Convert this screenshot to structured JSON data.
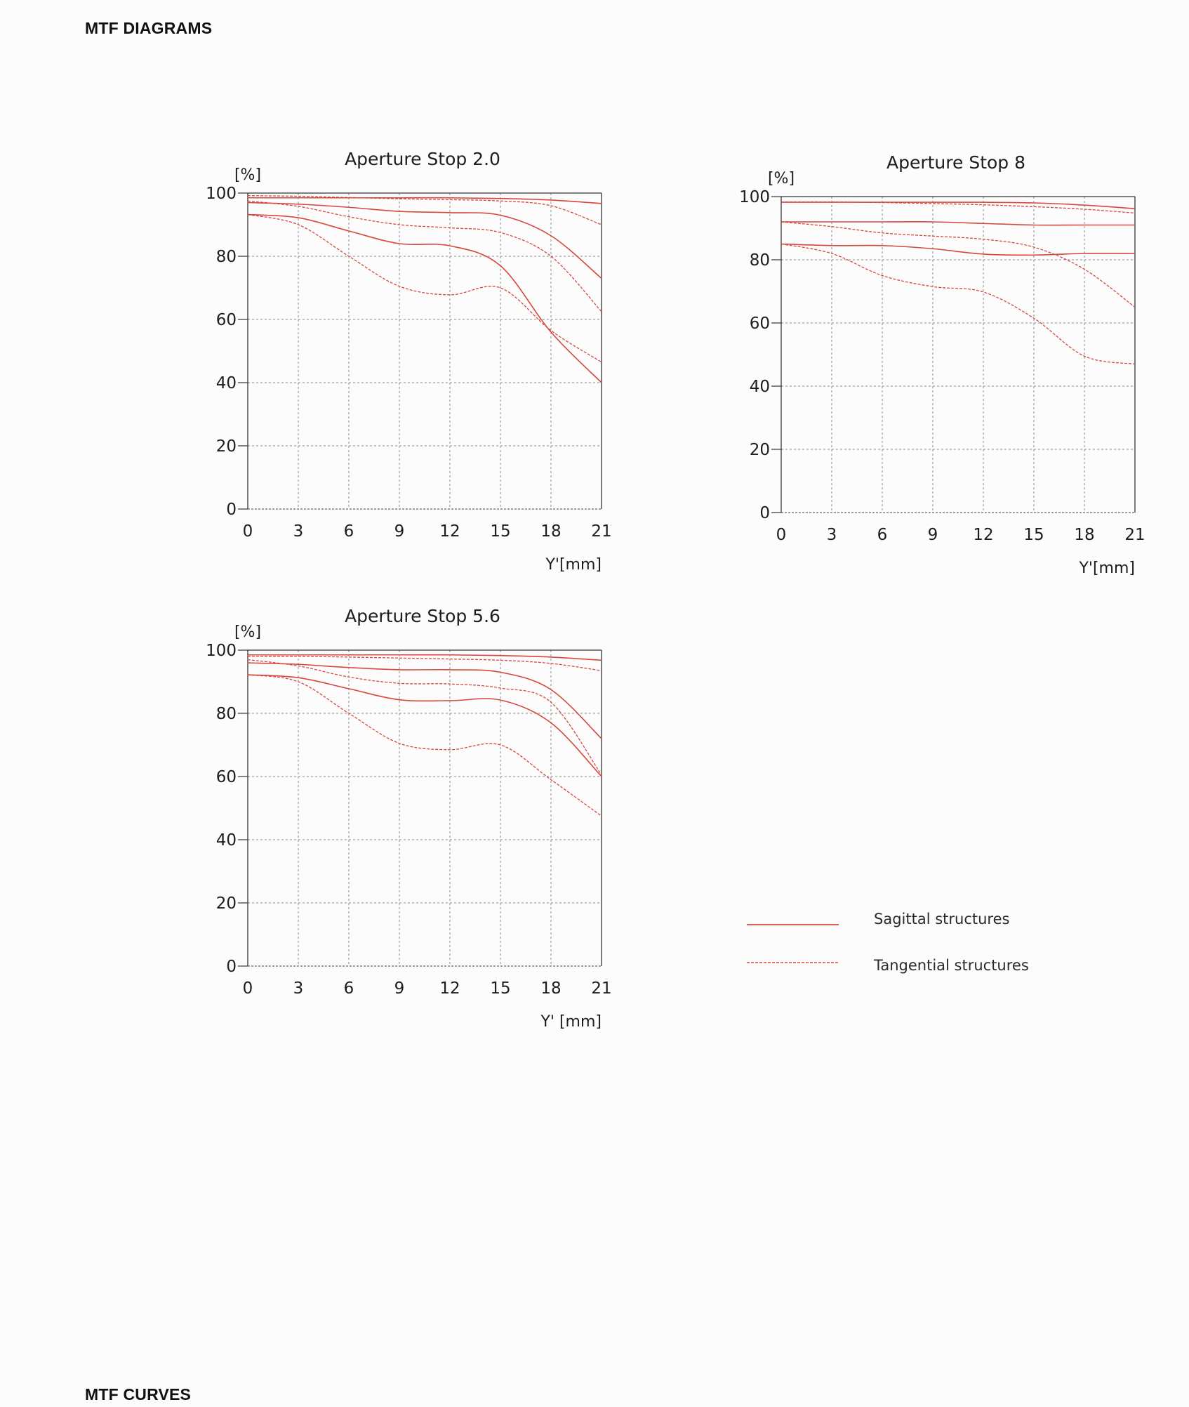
{
  "page": {
    "heading_top": "MTF DIAGRAMS",
    "heading_bottom": "MTF CURVES"
  },
  "colors": {
    "curve": "#d6473c",
    "grid": "#8a8a8a",
    "axis": "#333333"
  },
  "legend": {
    "sagittal": "Sagittal structures",
    "tangential": "Tangential structures"
  },
  "chart_data": [
    {
      "type": "line",
      "title": "Aperture Stop 2.0",
      "ylabel": "[%]",
      "xlabel": "Y'[mm]",
      "x_ticks": [
        "0",
        "3",
        "6",
        "9",
        "12",
        "15",
        "18",
        "21"
      ],
      "y_ticks": [
        "0",
        "20",
        "40",
        "60",
        "80",
        "100"
      ],
      "xlim": [
        0,
        21
      ],
      "ylim": [
        0,
        100
      ],
      "grid": true,
      "x": [
        0,
        3,
        6,
        9,
        12,
        15,
        18,
        21
      ],
      "series": [
        {
          "style": "solid",
          "values": [
            98.5,
            98.5,
            98.5,
            98.5,
            98.5,
            98.3,
            97.8,
            96.7
          ]
        },
        {
          "style": "dashed",
          "values": [
            99.2,
            99.0,
            98.6,
            98.2,
            97.9,
            97.5,
            96.0,
            90.0
          ]
        },
        {
          "style": "solid",
          "values": [
            97.0,
            96.5,
            95.5,
            94.2,
            93.8,
            93.0,
            86.5,
            73.0
          ]
        },
        {
          "style": "dashed",
          "values": [
            97.5,
            95.8,
            92.5,
            90.0,
            89.0,
            87.5,
            80.0,
            62.5
          ]
        },
        {
          "style": "solid",
          "values": [
            93.2,
            92.2,
            88.0,
            84.0,
            83.3,
            77.0,
            56.0,
            40.0
          ]
        },
        {
          "style": "dashed",
          "values": [
            93.2,
            90.0,
            80.0,
            70.5,
            67.8,
            70.0,
            56.5,
            46.5
          ]
        }
      ]
    },
    {
      "type": "line",
      "title": "Aperture Stop 8",
      "ylabel": "[%]",
      "xlabel": "Y'[mm]",
      "x_ticks": [
        "0",
        "3",
        "6",
        "9",
        "12",
        "15",
        "18",
        "21"
      ],
      "y_ticks": [
        "0",
        "20",
        "40",
        "60",
        "80",
        "100"
      ],
      "xlim": [
        0,
        21
      ],
      "ylim": [
        0,
        100
      ],
      "grid": true,
      "x": [
        0,
        3,
        6,
        9,
        12,
        15,
        18,
        21
      ],
      "series": [
        {
          "style": "solid",
          "values": [
            98.2,
            98.2,
            98.2,
            98.2,
            98.2,
            98.0,
            97.3,
            96.2
          ]
        },
        {
          "style": "dashed",
          "values": [
            98.3,
            98.3,
            98.1,
            97.8,
            97.4,
            96.8,
            96.0,
            94.8
          ]
        },
        {
          "style": "solid",
          "values": [
            92.0,
            92.0,
            92.0,
            92.0,
            91.5,
            91.0,
            91.0,
            91.0
          ]
        },
        {
          "style": "dashed",
          "values": [
            92.0,
            90.5,
            88.5,
            87.5,
            86.5,
            84.0,
            77.0,
            65.0
          ]
        },
        {
          "style": "solid",
          "values": [
            85.0,
            84.5,
            84.5,
            83.5,
            81.8,
            81.5,
            82.0,
            82.0
          ]
        },
        {
          "style": "dashed",
          "values": [
            85.0,
            82.0,
            75.0,
            71.5,
            69.8,
            61.5,
            49.5,
            47.0
          ]
        }
      ]
    },
    {
      "type": "line",
      "title": "Aperture Stop 5.6",
      "ylabel": "[%]",
      "xlabel": "Y' [mm]",
      "x_ticks": [
        "0",
        "3",
        "6",
        "9",
        "12",
        "15",
        "18",
        "21"
      ],
      "y_ticks": [
        "0",
        "20",
        "40",
        "60",
        "80",
        "100"
      ],
      "xlim": [
        0,
        21
      ],
      "ylim": [
        0,
        100
      ],
      "grid": true,
      "x": [
        0,
        3,
        6,
        9,
        12,
        15,
        18,
        21
      ],
      "series": [
        {
          "style": "solid",
          "values": [
            98.5,
            98.5,
            98.5,
            98.5,
            98.5,
            98.3,
            97.8,
            96.8
          ]
        },
        {
          "style": "dashed",
          "values": [
            98.0,
            98.0,
            97.8,
            97.5,
            97.2,
            96.8,
            95.8,
            93.5
          ]
        },
        {
          "style": "solid",
          "values": [
            96.0,
            95.5,
            94.5,
            93.8,
            93.8,
            93.0,
            87.5,
            72.0
          ]
        },
        {
          "style": "dashed",
          "values": [
            97.0,
            95.0,
            91.5,
            89.5,
            89.3,
            88.0,
            83.5,
            60.5
          ]
        },
        {
          "style": "solid",
          "values": [
            92.2,
            91.3,
            87.8,
            84.3,
            84.0,
            84.2,
            77.0,
            60.0
          ]
        },
        {
          "style": "dashed",
          "values": [
            92.2,
            90.0,
            80.0,
            70.5,
            68.5,
            70.0,
            59.0,
            47.5
          ]
        }
      ]
    }
  ]
}
